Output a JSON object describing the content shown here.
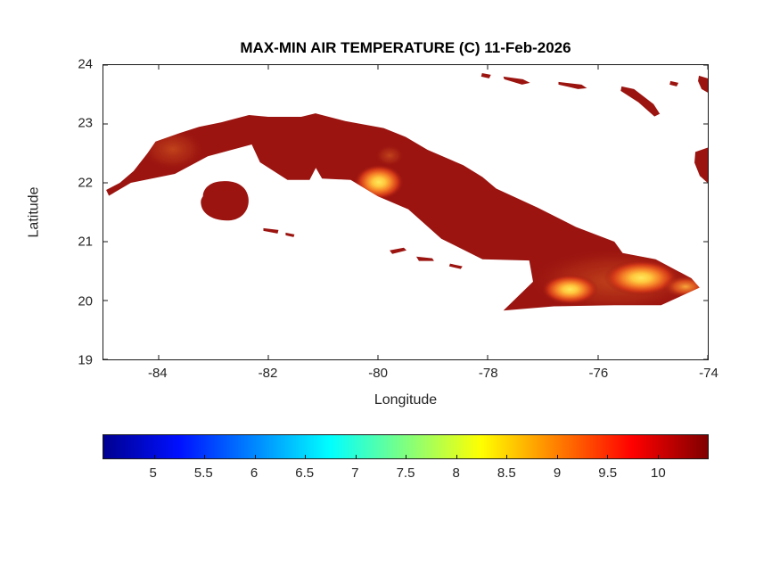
{
  "chart": {
    "title": "MAX-MIN AIR TEMPERATURE (C) 11-Feb-2026",
    "xlabel": "Longitude",
    "ylabel": "Latitude"
  },
  "chart_data": {
    "type": "heatmap",
    "title": "MAX-MIN AIR TEMPERATURE (C) 11-Feb-2026",
    "variable": "MAX-MIN AIR TEMPERATURE",
    "units": "C",
    "date": "11-Feb-2026",
    "region": "Cuba and nearby islands",
    "xlabel": "Longitude",
    "ylabel": "Latitude",
    "xlim": [
      -85,
      -74
    ],
    "ylim": [
      19,
      24
    ],
    "xticks": [
      -84,
      -82,
      -80,
      -78,
      -76,
      -74
    ],
    "yticks": [
      19,
      20,
      21,
      22,
      23,
      24
    ],
    "grid": false,
    "legend": "none",
    "colorbar": {
      "orientation": "horizontal",
      "position": "below axes",
      "colormap": "jet",
      "limits": [
        4.5,
        10.5
      ],
      "ticks": [
        5,
        5.5,
        6,
        6.5,
        7,
        7.5,
        8,
        8.5,
        9,
        9.5,
        10
      ],
      "gradient_stops": [
        {
          "pos": 0,
          "color": "#000090"
        },
        {
          "pos": 12.5,
          "color": "#0010ff"
        },
        {
          "pos": 37.5,
          "color": "#00ffff"
        },
        {
          "pos": 62.5,
          "color": "#ffff00"
        },
        {
          "pos": 87.5,
          "color": "#ff0000"
        },
        {
          "pos": 100,
          "color": "#800000"
        }
      ]
    },
    "values_summary": [
      {
        "area": "Most of mainland Cuba",
        "approx_value_c": 10.3,
        "appearance": "dark red (near colormap maximum)"
      },
      {
        "area": "Escambray mountains, central Cuba (~21.9N, -80.1E)",
        "approx_value_c": 8.0,
        "appearance": "yellow-orange hotspot"
      },
      {
        "area": "Southeastern Cuba, Sierra Maestra to Punta Maisi (~19.9-20.6N, -77.5 to -74.3E)",
        "approx_value_c": 7.5,
        "appearance": "large bright yellow-orange region"
      },
      {
        "area": "Northwest Pinar del Rio (~22.6N, -83.8E)",
        "approx_value_c": 9.5,
        "appearance": "faint orange tinge"
      },
      {
        "area": "Isla de la Juventud and offshore cays",
        "approx_value_c": 10.3,
        "appearance": "dark red"
      },
      {
        "area": "Bahamas fragments (top right) and Acklins area (right edge)",
        "approx_value_c": 10.3,
        "appearance": "dark red slivers"
      }
    ]
  },
  "colors": {
    "background": "#ffffff",
    "land_base": "#9b1410",
    "hotspot_core": "#ffe95c",
    "hotspot_orange": "#f57f27",
    "axis_line": "#1a1a1a",
    "axis_text": "#242424",
    "title_text": "#000000"
  }
}
